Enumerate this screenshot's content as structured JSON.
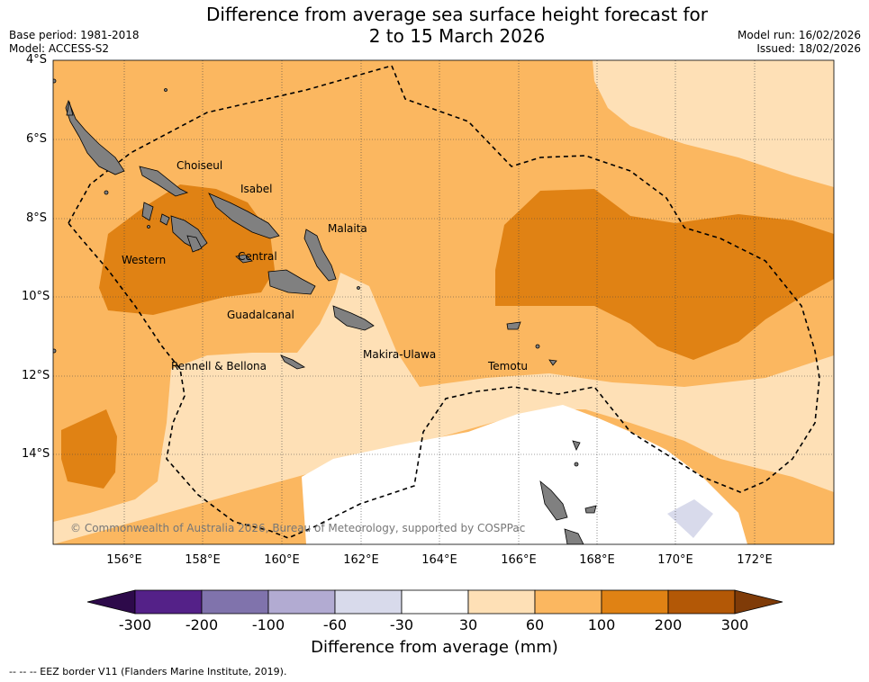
{
  "title_line1": "Difference from average sea surface height forecast for",
  "title_line2": "2 to 15 March 2026",
  "base_period": "Base period: 1981-2018",
  "model": "Model: ACCESS-S2",
  "model_run": "Model run: 16/02/2026",
  "issued": "Issued: 18/02/2026",
  "lat_ticks": [
    "4°S",
    "6°S",
    "8°S",
    "10°S",
    "12°S",
    "14°S"
  ],
  "lon_ticks": [
    "156°E",
    "158°E",
    "160°E",
    "162°E",
    "164°E",
    "166°E",
    "168°E",
    "170°E",
    "172°E"
  ],
  "provinces": [
    "Choiseul",
    "Isabel",
    "Malaita",
    "Western",
    "Central",
    "Guadalcanal",
    "Makira-Ulawa",
    "Rennell & Bellona",
    "Temotu"
  ],
  "copyright": "© Commonwealth of Australia 2026, Bureau of Meteorology, supported by COSPPac",
  "colorbar_labels": [
    "-300",
    "-200",
    "-100",
    "-60",
    "-30",
    "30",
    "60",
    "100",
    "200",
    "300"
  ],
  "colorbar_title": "Difference from average (mm)",
  "footer": "--  --  -- EEZ border V11 (Flanders Marine Institute, 2019).",
  "colors": {
    "c_lt_n300": "#2d0a4a",
    "c_n300_n200": "#542188",
    "c_n200_n100": "#8073ac",
    "c_n100_n60": "#b2abd2",
    "c_n60_n30": "#d8daeb",
    "c_n30_30": "#ffffff",
    "c_30_60": "#fee0b6",
    "c_60_100": "#fbb760",
    "c_100_200": "#e08214",
    "c_200_300": "#b35806",
    "c_gt_300": "#7f3b08",
    "land": "#808080"
  }
}
